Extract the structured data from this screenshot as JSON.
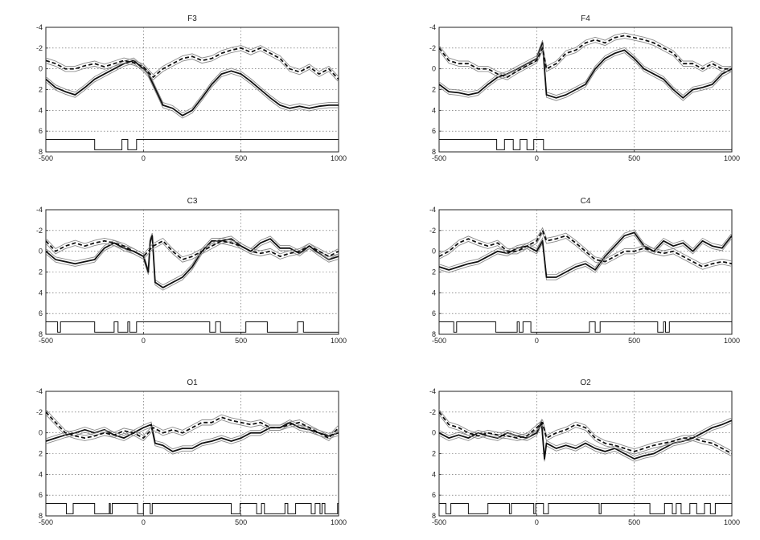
{
  "figure": {
    "colors": {
      "line": "#111111",
      "band": "#8a8a8a",
      "grid": "#555555",
      "axis": "#222222"
    }
  },
  "chart_data": [
    {
      "type": "line",
      "title": "F3",
      "xlim": [
        -500,
        1000
      ],
      "ylim": [
        -4,
        8
      ],
      "x_ticks": [
        -500,
        0,
        500,
        1000
      ],
      "y_ticks": [
        -4,
        -2,
        0,
        2,
        4,
        6,
        8
      ],
      "y_reversed": true,
      "grid": true,
      "series": [
        {
          "style": "solid",
          "x": [
            -500,
            -450,
            -400,
            -350,
            -300,
            -250,
            -200,
            -150,
            -100,
            -50,
            0,
            25,
            50,
            100,
            150,
            200,
            250,
            300,
            350,
            400,
            450,
            500,
            550,
            600,
            650,
            700,
            750,
            800,
            850,
            900,
            950,
            1000
          ],
          "y": [
            1.0,
            1.8,
            2.2,
            2.5,
            1.8,
            1.0,
            0.5,
            0.0,
            -0.5,
            -0.8,
            0.0,
            0.5,
            1.5,
            3.5,
            3.8,
            4.5,
            4.0,
            2.8,
            1.5,
            0.5,
            0.2,
            0.5,
            1.2,
            2.0,
            2.8,
            3.5,
            3.8,
            3.6,
            3.8,
            3.6,
            3.5,
            3.5
          ]
        },
        {
          "style": "dashed",
          "x": [
            -500,
            -450,
            -400,
            -350,
            -300,
            -250,
            -200,
            -150,
            -100,
            -50,
            0,
            50,
            100,
            150,
            200,
            250,
            300,
            350,
            400,
            450,
            500,
            550,
            600,
            650,
            700,
            750,
            800,
            850,
            900,
            950,
            1000
          ],
          "y": [
            -0.8,
            -0.5,
            0.0,
            0.0,
            -0.3,
            -0.5,
            -0.2,
            -0.5,
            -0.8,
            -0.6,
            -0.2,
            0.8,
            0.0,
            -0.5,
            -1.0,
            -1.2,
            -0.8,
            -1.0,
            -1.5,
            -1.8,
            -2.0,
            -1.6,
            -2.0,
            -1.5,
            -1.0,
            0.0,
            0.3,
            -0.2,
            0.5,
            0.0,
            1.0
          ]
        }
      ],
      "trigger_events": [
        [
          -250,
          -110
        ],
        [
          -80,
          -35
        ]
      ]
    },
    {
      "type": "line",
      "title": "F4",
      "xlim": [
        -500,
        1000
      ],
      "ylim": [
        -4,
        8
      ],
      "x_ticks": [
        -500,
        0,
        500,
        1000
      ],
      "y_ticks": [
        -4,
        -2,
        0,
        2,
        4,
        6,
        8
      ],
      "y_reversed": true,
      "grid": true,
      "series": [
        {
          "style": "solid",
          "x": [
            -500,
            -450,
            -400,
            -350,
            -300,
            -250,
            -200,
            -150,
            -100,
            -50,
            0,
            30,
            50,
            100,
            150,
            200,
            250,
            300,
            350,
            400,
            450,
            500,
            550,
            600,
            650,
            700,
            750,
            800,
            850,
            900,
            950,
            1000
          ],
          "y": [
            1.5,
            2.2,
            2.3,
            2.5,
            2.3,
            1.5,
            0.8,
            0.5,
            0.0,
            -0.5,
            -1.0,
            -2.5,
            2.5,
            2.8,
            2.5,
            2.0,
            1.5,
            0.0,
            -1.0,
            -1.5,
            -1.8,
            -1.0,
            0.0,
            0.5,
            1.0,
            2.0,
            2.8,
            2.0,
            1.8,
            1.5,
            0.5,
            0.0
          ]
        },
        {
          "style": "dashed",
          "x": [
            -500,
            -450,
            -400,
            -350,
            -300,
            -250,
            -200,
            -150,
            -100,
            -50,
            0,
            30,
            50,
            100,
            150,
            200,
            250,
            300,
            350,
            400,
            450,
            500,
            550,
            600,
            650,
            700,
            750,
            800,
            850,
            900,
            950,
            1000
          ],
          "y": [
            -2.0,
            -0.8,
            -0.5,
            -0.5,
            0.0,
            0.0,
            0.5,
            0.8,
            0.2,
            -0.3,
            -0.8,
            -2.0,
            0.0,
            -0.5,
            -1.5,
            -1.8,
            -2.5,
            -2.8,
            -2.5,
            -3.0,
            -3.2,
            -3.0,
            -2.8,
            -2.5,
            -2.0,
            -1.5,
            -0.5,
            -0.5,
            0.0,
            -0.5,
            0.0,
            0.0
          ]
        }
      ],
      "trigger_events": [
        [
          -205,
          -165
        ],
        [
          -120,
          -85
        ],
        [
          -50,
          -15
        ],
        [
          35,
          1000
        ]
      ]
    },
    {
      "type": "line",
      "title": "C3",
      "xlim": [
        -500,
        1000
      ],
      "ylim": [
        -4,
        8
      ],
      "x_ticks": [
        -500,
        0,
        500,
        1000
      ],
      "y_ticks": [
        -4,
        -2,
        0,
        2,
        4,
        6,
        8
      ],
      "y_reversed": true,
      "grid": true,
      "series": [
        {
          "style": "solid",
          "x": [
            -500,
            -450,
            -400,
            -350,
            -300,
            -250,
            -200,
            -150,
            -100,
            -50,
            0,
            25,
            35,
            45,
            60,
            100,
            150,
            200,
            250,
            300,
            350,
            400,
            450,
            500,
            550,
            600,
            650,
            700,
            750,
            800,
            850,
            900,
            950,
            1000
          ],
          "y": [
            0.0,
            0.8,
            1.0,
            1.2,
            1.0,
            0.8,
            -0.3,
            -0.8,
            -0.3,
            0.0,
            0.5,
            2.0,
            -1.0,
            -1.5,
            3.0,
            3.5,
            3.0,
            2.5,
            1.5,
            0.0,
            -1.0,
            -1.0,
            -1.2,
            -0.5,
            0.0,
            -0.8,
            -1.2,
            -0.3,
            -0.3,
            0.2,
            -0.5,
            0.2,
            0.8,
            0.5
          ]
        },
        {
          "style": "dashed",
          "x": [
            -500,
            -450,
            -400,
            -350,
            -300,
            -250,
            -200,
            -150,
            -100,
            -50,
            0,
            50,
            100,
            150,
            200,
            250,
            300,
            350,
            400,
            450,
            500,
            550,
            600,
            650,
            700,
            750,
            800,
            850,
            900,
            950,
            1000
          ],
          "y": [
            -1.0,
            0.0,
            -0.5,
            -0.8,
            -0.5,
            -0.8,
            -1.0,
            -0.8,
            -0.5,
            0.0,
            0.5,
            -0.5,
            -1.0,
            0.0,
            0.8,
            0.5,
            0.0,
            -0.5,
            -1.0,
            -0.8,
            -0.5,
            0.0,
            0.2,
            0.0,
            0.5,
            0.2,
            0.0,
            -0.5,
            0.0,
            0.5,
            0.0
          ]
        }
      ],
      "trigger_events": [
        [
          -440,
          -425
        ],
        [
          -250,
          -150
        ],
        [
          -130,
          -80
        ],
        [
          -70,
          -35
        ],
        [
          340,
          370
        ],
        [
          395,
          525
        ],
        [
          635,
          790
        ],
        [
          820,
          1000
        ]
      ]
    },
    {
      "type": "line",
      "title": "C4",
      "xlim": [
        -500,
        1000
      ],
      "ylim": [
        -4,
        8
      ],
      "x_ticks": [
        -500,
        0,
        500,
        1000
      ],
      "y_ticks": [
        -4,
        -2,
        0,
        2,
        4,
        6,
        8
      ],
      "y_reversed": true,
      "grid": true,
      "series": [
        {
          "style": "solid",
          "x": [
            -500,
            -450,
            -400,
            -350,
            -300,
            -250,
            -200,
            -150,
            -100,
            -50,
            0,
            30,
            50,
            100,
            150,
            200,
            250,
            300,
            350,
            400,
            450,
            500,
            550,
            600,
            650,
            700,
            750,
            800,
            850,
            900,
            950,
            1000
          ],
          "y": [
            1.5,
            1.8,
            1.5,
            1.2,
            1.0,
            0.5,
            0.0,
            0.2,
            -0.3,
            -0.5,
            0.0,
            -1.0,
            2.5,
            2.5,
            2.0,
            1.5,
            1.2,
            1.8,
            0.5,
            -0.5,
            -1.5,
            -1.8,
            -0.5,
            0.0,
            -1.0,
            -0.5,
            -0.8,
            0.0,
            -1.0,
            -0.5,
            -0.3,
            -1.5
          ]
        },
        {
          "style": "dashed",
          "x": [
            -500,
            -450,
            -400,
            -350,
            -300,
            -250,
            -200,
            -150,
            -100,
            -50,
            0,
            30,
            50,
            100,
            150,
            200,
            250,
            300,
            350,
            400,
            450,
            500,
            550,
            600,
            650,
            700,
            750,
            800,
            850,
            900,
            950,
            1000
          ],
          "y": [
            0.5,
            0.0,
            -0.8,
            -1.2,
            -0.8,
            -0.5,
            -0.8,
            0.0,
            0.0,
            -0.5,
            -1.0,
            -2.0,
            -1.0,
            -1.2,
            -1.5,
            -0.8,
            0.0,
            0.8,
            1.0,
            0.5,
            0.0,
            0.0,
            -0.3,
            0.0,
            0.2,
            0.0,
            0.5,
            1.0,
            1.5,
            1.2,
            1.0,
            1.2
          ]
        }
      ],
      "trigger_events": [
        [
          -425,
          -410
        ],
        [
          -210,
          -100
        ],
        [
          -90,
          -70
        ],
        [
          -30,
          270
        ],
        [
          300,
          325
        ],
        [
          620,
          650
        ],
        [
          660,
          680
        ]
      ]
    },
    {
      "type": "line",
      "title": "O1",
      "xlim": [
        -500,
        1000
      ],
      "ylim": [
        -4,
        8
      ],
      "x_ticks": [
        -500,
        0,
        500,
        1000
      ],
      "y_ticks": [
        -4,
        -2,
        0,
        2,
        4,
        6,
        8
      ],
      "y_reversed": true,
      "grid": true,
      "series": [
        {
          "style": "solid",
          "x": [
            -500,
            -450,
            -400,
            -350,
            -300,
            -250,
            -200,
            -150,
            -100,
            -50,
            0,
            40,
            60,
            100,
            150,
            200,
            250,
            300,
            350,
            400,
            450,
            500,
            550,
            600,
            650,
            700,
            750,
            800,
            850,
            900,
            950,
            1000
          ],
          "y": [
            0.8,
            0.5,
            0.2,
            0.0,
            -0.3,
            0.0,
            -0.3,
            0.2,
            0.5,
            0.0,
            -0.5,
            -0.8,
            1.0,
            1.2,
            1.8,
            1.5,
            1.5,
            1.0,
            0.8,
            0.5,
            0.8,
            0.5,
            0.0,
            0.0,
            -0.5,
            -0.5,
            -1.0,
            -0.5,
            -0.3,
            0.0,
            0.3,
            0.0
          ]
        },
        {
          "style": "dashed",
          "x": [
            -500,
            -450,
            -400,
            -350,
            -300,
            -250,
            -200,
            -150,
            -100,
            -50,
            0,
            50,
            100,
            150,
            200,
            250,
            300,
            350,
            400,
            450,
            500,
            550,
            600,
            650,
            700,
            750,
            800,
            850,
            900,
            950,
            1000
          ],
          "y": [
            -2.0,
            -1.0,
            0.0,
            0.3,
            0.5,
            0.3,
            0.0,
            0.2,
            -0.2,
            0.0,
            0.5,
            -0.5,
            0.0,
            -0.3,
            0.0,
            -0.5,
            -1.0,
            -1.0,
            -1.5,
            -1.2,
            -1.0,
            -0.8,
            -1.0,
            -0.5,
            -0.5,
            -0.8,
            -1.0,
            -0.5,
            0.0,
            0.5,
            -0.5
          ]
        }
      ],
      "trigger_events": [
        [
          -395,
          -360
        ],
        [
          -250,
          -175
        ],
        [
          -170,
          -160
        ],
        [
          -30,
          0
        ],
        [
          35,
          45
        ],
        [
          450,
          495
        ],
        [
          580,
          605
        ],
        [
          620,
          725
        ],
        [
          740,
          780
        ],
        [
          860,
          880
        ],
        [
          905,
          915
        ],
        [
          930,
          995
        ]
      ]
    },
    {
      "type": "line",
      "title": "O2",
      "xlim": [
        -500,
        1000
      ],
      "ylim": [
        -4,
        8
      ],
      "x_ticks": [
        -500,
        0,
        500,
        1000
      ],
      "y_ticks": [
        -4,
        -2,
        0,
        2,
        4,
        6,
        8
      ],
      "y_reversed": true,
      "grid": true,
      "series": [
        {
          "style": "solid",
          "x": [
            -500,
            -450,
            -400,
            -350,
            -300,
            -250,
            -200,
            -150,
            -100,
            -50,
            0,
            25,
            40,
            50,
            100,
            150,
            200,
            250,
            300,
            350,
            400,
            450,
            500,
            550,
            600,
            650,
            700,
            750,
            800,
            850,
            900,
            950,
            1000
          ],
          "y": [
            0.0,
            0.5,
            0.2,
            0.5,
            0.0,
            0.3,
            0.5,
            0.0,
            0.3,
            0.5,
            0.0,
            -1.0,
            2.5,
            1.0,
            1.5,
            1.2,
            1.5,
            1.0,
            1.5,
            1.8,
            1.5,
            2.0,
            2.5,
            2.2,
            2.0,
            1.5,
            1.0,
            0.8,
            0.5,
            0.0,
            -0.5,
            -0.8,
            -1.2
          ]
        },
        {
          "style": "dashed",
          "x": [
            -500,
            -450,
            -400,
            -350,
            -300,
            -250,
            -200,
            -150,
            -100,
            -50,
            0,
            30,
            50,
            100,
            150,
            200,
            250,
            300,
            350,
            400,
            450,
            500,
            550,
            600,
            650,
            700,
            750,
            800,
            850,
            900,
            950,
            1000
          ],
          "y": [
            -2.0,
            -0.8,
            -0.5,
            0.0,
            0.3,
            0.0,
            0.2,
            0.3,
            0.5,
            0.3,
            -0.5,
            -1.0,
            0.5,
            0.0,
            -0.3,
            -0.8,
            -0.5,
            0.5,
            1.0,
            1.2,
            1.5,
            1.8,
            1.5,
            1.2,
            1.0,
            0.8,
            0.5,
            0.5,
            0.8,
            1.0,
            1.5,
            2.0
          ]
        }
      ],
      "trigger_events": [
        [
          -465,
          -440
        ],
        [
          -350,
          -250
        ],
        [
          -140,
          -130
        ],
        [
          -15,
          -5
        ],
        [
          35,
          60
        ],
        [
          320,
          330
        ],
        [
          580,
          655
        ],
        [
          695,
          715
        ],
        [
          740,
          785
        ],
        [
          820,
          860
        ],
        [
          890,
          915
        ]
      ]
    }
  ]
}
